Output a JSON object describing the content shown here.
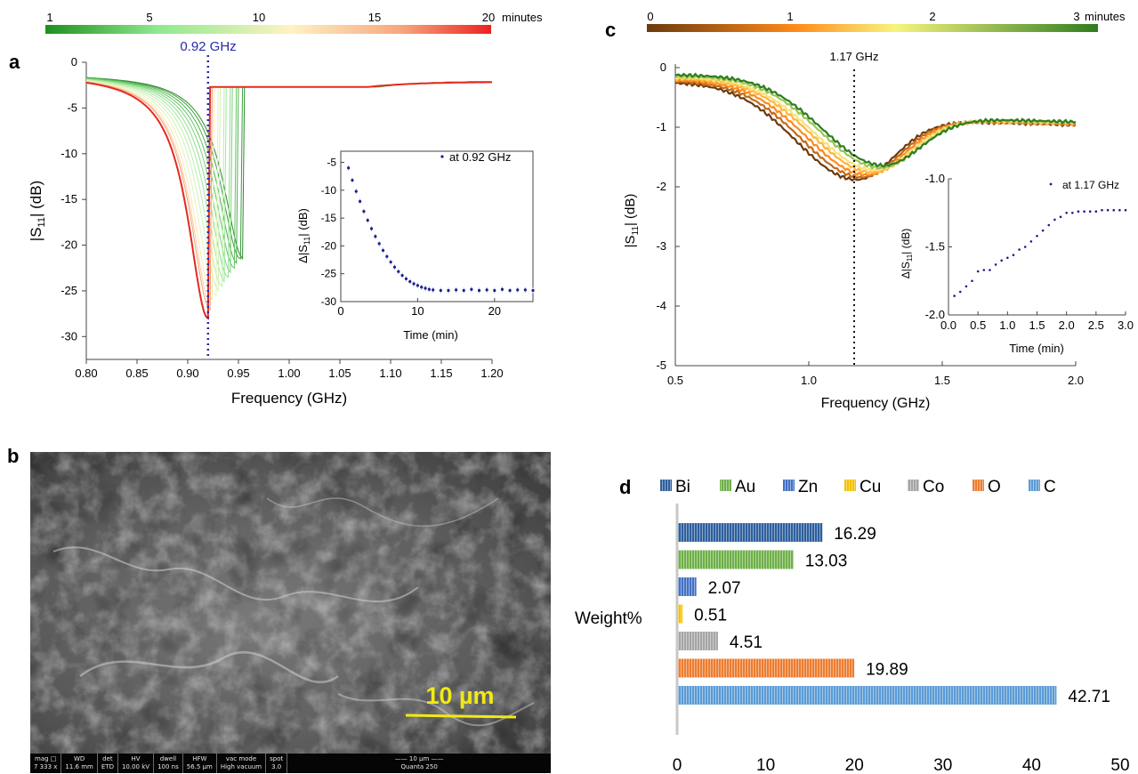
{
  "panel_labels": {
    "a": "a",
    "b": "b",
    "c": "c",
    "d": "d"
  },
  "panel_a": {
    "colorbar": {
      "ticks": [
        "1",
        "5",
        "10",
        "15",
        "20"
      ],
      "unit": "minutes",
      "colors": [
        "#1f8f1f",
        "#8ee88e",
        "#fff2c2",
        "#f6a67e",
        "#ec2121"
      ]
    },
    "marker_label": "0.92 GHz",
    "xlabel": "Frequency (GHz)",
    "ylabel_main": "|S",
    "ylabel_sub": "11",
    "ylabel_end": "| (dB)",
    "inset": {
      "legend": "at 0.92 GHz",
      "xlabel": "Time (min)",
      "ylabel_main": "Δ|S",
      "ylabel_sub": "11",
      "ylabel_end": "| (dB)"
    }
  },
  "panel_b": {
    "scale_label": "10 µm",
    "databar": [
      {
        "key": "mag □",
        "value": "7 333 x"
      },
      {
        "key": "WD",
        "value": "11.6 mm"
      },
      {
        "key": "det",
        "value": "ETD"
      },
      {
        "key": "HV",
        "value": "10.00 kV"
      },
      {
        "key": "dwell",
        "value": "100 ns"
      },
      {
        "key": "HFW",
        "value": "56.5 µm"
      },
      {
        "key": "vac mode",
        "value": "High vacuum"
      },
      {
        "key": "spot",
        "value": "3.0"
      },
      {
        "key": "—— 10 µm ——",
        "value": "Quanta 250"
      }
    ]
  },
  "panel_c": {
    "colorbar": {
      "ticks": [
        "0",
        "1",
        "2",
        "3"
      ],
      "unit": "minutes",
      "colors": [
        "#6b3a0e",
        "#ff8a1a",
        "#f8f47e",
        "#2e7d20"
      ]
    },
    "marker_label": "1.17 GHz",
    "xlabel": "Frequency (GHz)",
    "ylabel_main": "|S",
    "ylabel_sub": "11",
    "ylabel_end": "| (dB)",
    "inset": {
      "legend": "at 1.17 GHz",
      "xlabel": "Time (min)",
      "ylabel_main": "Δ|S",
      "ylabel_sub": "11",
      "ylabel_end": "| (dB)"
    }
  },
  "chart_data": [
    {
      "id": "a",
      "type": "line",
      "xlabel": "Frequency (GHz)",
      "ylabel": "|S11| (dB)",
      "xlim": [
        0.8,
        1.2
      ],
      "ylim": [
        -32.5,
        0
      ],
      "xticks": [
        0.8,
        0.85,
        0.9,
        0.95,
        1.0,
        1.05,
        1.1,
        1.15,
        1.2
      ],
      "xtick_labels": [
        "0.80",
        "0.85",
        "0.90",
        "0.95",
        "1.00",
        "1.05",
        "1.10",
        "1.15",
        "1.20"
      ],
      "yticks": [
        0,
        -5,
        -10,
        -15,
        -20,
        -25,
        -30
      ],
      "marker_x": 0.92,
      "series": [
        {
          "time_min": 1,
          "min_freq": 0.955,
          "min_db": -21.5,
          "color": "#2e8b2e"
        },
        {
          "time_min": 2,
          "min_freq": 0.952,
          "min_db": -21.5,
          "color": "#3e9f3e"
        },
        {
          "time_min": 3,
          "min_freq": 0.949,
          "min_db": -22.0,
          "color": "#50b250"
        },
        {
          "time_min": 4,
          "min_freq": 0.946,
          "min_db": -22.5,
          "color": "#64c364"
        },
        {
          "time_min": 5,
          "min_freq": 0.943,
          "min_db": -23.0,
          "color": "#7ad27a"
        },
        {
          "time_min": 6,
          "min_freq": 0.94,
          "min_db": -23.5,
          "color": "#8fdd8f"
        },
        {
          "time_min": 7,
          "min_freq": 0.937,
          "min_db": -24.0,
          "color": "#a4e6a0"
        },
        {
          "time_min": 8,
          "min_freq": 0.934,
          "min_db": -24.5,
          "color": "#baeead"
        },
        {
          "time_min": 9,
          "min_freq": 0.931,
          "min_db": -25.0,
          "color": "#cff2b8"
        },
        {
          "time_min": 10,
          "min_freq": 0.928,
          "min_db": -25.5,
          "color": "#e4f4bd"
        },
        {
          "time_min": 12,
          "min_freq": 0.925,
          "min_db": -26.0,
          "color": "#f6ebb2"
        },
        {
          "time_min": 14,
          "min_freq": 0.923,
          "min_db": -26.5,
          "color": "#f8cfa0"
        },
        {
          "time_min": 17,
          "min_freq": 0.922,
          "min_db": -27.0,
          "color": "#f3a07c"
        },
        {
          "time_min": 20,
          "min_freq": 0.92,
          "min_db": -28.0,
          "color": "#e52a1f"
        }
      ],
      "inset": {
        "type": "scatter",
        "legend": "at 0.92 GHz",
        "xlabel": "Time (min)",
        "ylabel": "Δ|S11| (dB)",
        "xlim": [
          0,
          25
        ],
        "ylim": [
          -30,
          -3
        ],
        "xticks": [
          0,
          10,
          20
        ],
        "yticks": [
          -5,
          -10,
          -15,
          -20,
          -25,
          -30
        ],
        "x": [
          1,
          1.5,
          2,
          2.5,
          3,
          3.5,
          4,
          4.5,
          5,
          5.5,
          6,
          6.5,
          7,
          7.5,
          8,
          8.5,
          9,
          9.5,
          10,
          10.5,
          11,
          11.5,
          12,
          13,
          14,
          15,
          16,
          17,
          18,
          19,
          20,
          21,
          22,
          23,
          24,
          25
        ],
        "y": [
          -6.0,
          -8.2,
          -10.2,
          -12.0,
          -13.8,
          -15.4,
          -16.9,
          -18.3,
          -19.6,
          -20.8,
          -21.9,
          -22.9,
          -23.8,
          -24.6,
          -25.3,
          -25.9,
          -26.4,
          -26.8,
          -27.1,
          -27.4,
          -27.6,
          -27.8,
          -27.9,
          -28.0,
          -28.0,
          -27.9,
          -28.0,
          -27.8,
          -28.0,
          -27.9,
          -28.0,
          -27.8,
          -28.0,
          -27.9,
          -27.9,
          -28.0
        ]
      }
    },
    {
      "id": "c",
      "type": "line",
      "xlabel": "Frequency (GHz)",
      "ylabel": "|S11| (dB)",
      "xlim": [
        0.5,
        2.0
      ],
      "ylim": [
        -5,
        0
      ],
      "xticks": [
        0.5,
        1.0,
        1.5,
        2.0
      ],
      "xtick_labels": [
        "0.5",
        "1.0",
        "1.5",
        "2.0"
      ],
      "yticks": [
        0,
        -1,
        -2,
        -3,
        -4,
        -5
      ],
      "marker_x": 1.17,
      "series": [
        {
          "time_min": 0,
          "min_freq": 1.18,
          "min_db": -1.88,
          "color": "#6b3a0e"
        },
        {
          "time_min": 0.5,
          "min_freq": 1.2,
          "min_db": -1.84,
          "color": "#c06a1a"
        },
        {
          "time_min": 1,
          "min_freq": 1.22,
          "min_db": -1.8,
          "color": "#ff8a1a"
        },
        {
          "time_min": 1.5,
          "min_freq": 1.24,
          "min_db": -1.76,
          "color": "#ffb43a"
        },
        {
          "time_min": 2,
          "min_freq": 1.25,
          "min_db": -1.72,
          "color": "#f8e27a"
        },
        {
          "time_min": 2.5,
          "min_freq": 1.27,
          "min_db": -1.68,
          "color": "#9cc454"
        },
        {
          "time_min": 3,
          "min_freq": 1.28,
          "min_db": -1.64,
          "color": "#2e7d20"
        }
      ],
      "inset": {
        "type": "scatter",
        "legend": "at 1.17 GHz",
        "xlabel": "Time (min)",
        "ylabel": "Δ|S11| (dB)",
        "xlim": [
          0,
          3.0
        ],
        "ylim": [
          -2.0,
          -1.0
        ],
        "xticks": [
          0.0,
          0.5,
          1.0,
          1.5,
          2.0,
          2.5,
          3.0
        ],
        "xtick_labels": [
          "0.0",
          "0.5",
          "1.0",
          "1.5",
          "2.0",
          "2.5",
          "3.0"
        ],
        "yticks": [
          -1.0,
          -1.5,
          -2.0
        ],
        "ytick_labels": [
          "-1.0",
          "-1.5",
          "-2.0"
        ],
        "x": [
          0.1,
          0.2,
          0.3,
          0.4,
          0.5,
          0.6,
          0.7,
          0.8,
          0.9,
          1.0,
          1.1,
          1.2,
          1.3,
          1.4,
          1.5,
          1.6,
          1.7,
          1.8,
          1.9,
          2.0,
          2.1,
          2.2,
          2.3,
          2.4,
          2.5,
          2.6,
          2.7,
          2.8,
          2.9,
          3.0
        ],
        "y": [
          -1.86,
          -1.83,
          -1.79,
          -1.75,
          -1.68,
          -1.67,
          -1.67,
          -1.63,
          -1.6,
          -1.58,
          -1.56,
          -1.52,
          -1.5,
          -1.46,
          -1.42,
          -1.38,
          -1.34,
          -1.3,
          -1.28,
          -1.25,
          -1.25,
          -1.24,
          -1.24,
          -1.24,
          -1.24,
          -1.23,
          -1.23,
          -1.23,
          -1.23,
          -1.23
        ]
      }
    },
    {
      "id": "d",
      "type": "bar",
      "orientation": "horizontal",
      "ylabel": "Weight%",
      "categories": [
        "Bi",
        "Au",
        "Zn",
        "Cu",
        "Co",
        "O",
        "C"
      ],
      "values": [
        16.29,
        13.03,
        2.07,
        0.51,
        4.51,
        19.89,
        42.71
      ],
      "value_labels": [
        "16.29",
        "13.03",
        "2.07",
        "0.51",
        "4.51",
        "19.89",
        "42.71"
      ],
      "colors": [
        "#2e5f9e",
        "#6fb049",
        "#4472c4",
        "#f5c000",
        "#a5a5a5",
        "#ed7d31",
        "#5b9bd5"
      ],
      "xlim": [
        0,
        50
      ],
      "xticks": [
        0,
        10,
        20,
        30,
        40,
        50
      ],
      "legend_position": "top"
    }
  ]
}
